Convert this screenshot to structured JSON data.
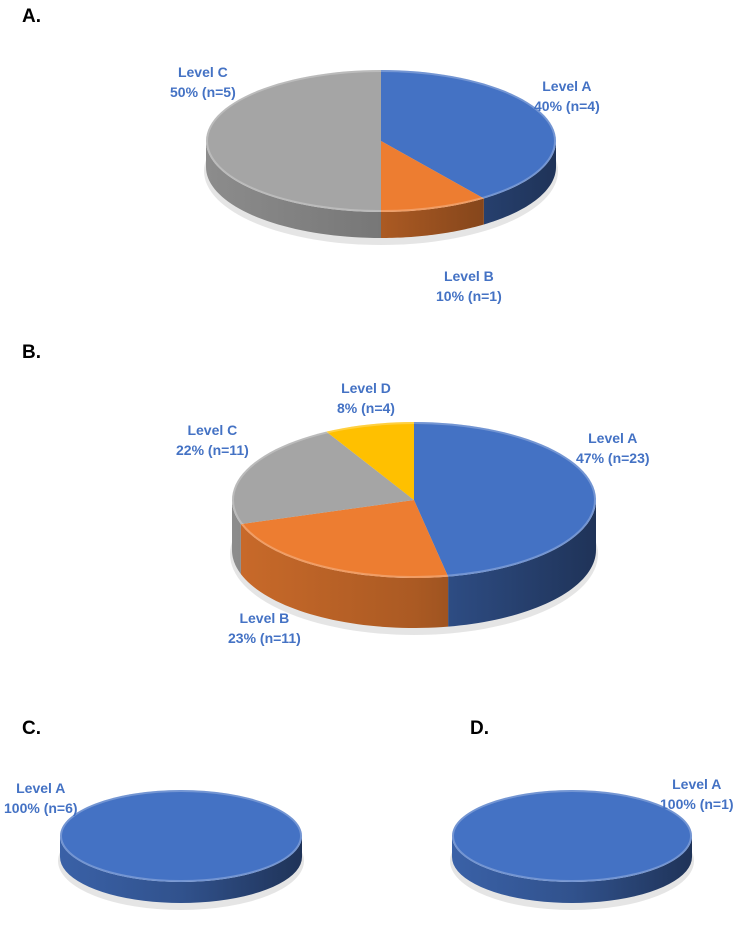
{
  "chart_data": [
    {
      "type": "pie",
      "panel": "A.",
      "slices": [
        {
          "name": "Level A",
          "percent": 40,
          "n": 4,
          "label": "Level A",
          "value_label": "40% (n=4)"
        },
        {
          "name": "Level B",
          "percent": 10,
          "n": 1,
          "label": "Level B",
          "value_label": "10% (n=1)"
        },
        {
          "name": "Level C",
          "percent": 50,
          "n": 5,
          "label": "Level C",
          "value_label": "50% (n=5)"
        }
      ]
    },
    {
      "type": "pie",
      "panel": "B.",
      "slices": [
        {
          "name": "Level A",
          "percent": 47,
          "n": 23,
          "label": "Level A",
          "value_label": "47% (n=23)"
        },
        {
          "name": "Level B",
          "percent": 23,
          "n": 11,
          "label": "Level B",
          "value_label": "23% (n=11)"
        },
        {
          "name": "Level C",
          "percent": 22,
          "n": 11,
          "label": "Level C",
          "value_label": "22% (n=11)"
        },
        {
          "name": "Level D",
          "percent": 8,
          "n": 4,
          "label": "Level D",
          "value_label": "8% (n=4)"
        }
      ]
    },
    {
      "type": "pie",
      "panel": "C.",
      "slices": [
        {
          "name": "Level A",
          "percent": 100,
          "n": 6,
          "label": "Level A",
          "value_label": "100% (n=6)"
        }
      ]
    },
    {
      "type": "pie",
      "panel": "D.",
      "slices": [
        {
          "name": "Level A",
          "percent": 100,
          "n": 1,
          "label": "Level A",
          "value_label": "100% (n=1)"
        }
      ]
    }
  ],
  "colors": {
    "Level A": "#4472C4",
    "Level B": "#ED7D31",
    "Level C": "#A5A5A5",
    "Level D": "#FFC000",
    "label_text": "#4472C4"
  }
}
